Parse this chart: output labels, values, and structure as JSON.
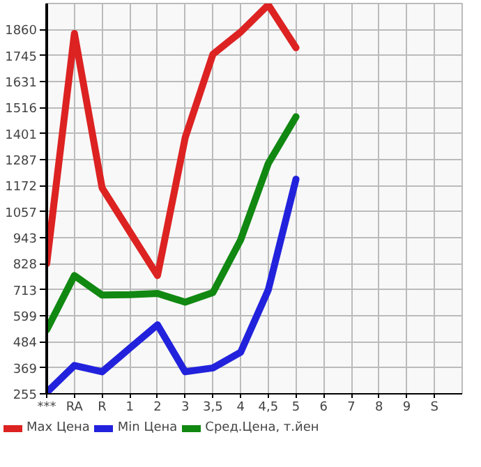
{
  "chart_data": {
    "type": "line",
    "categories": [
      "***",
      "RA",
      "R",
      "1",
      "2",
      "3",
      "3,5",
      "4",
      "4,5",
      "5",
      "6",
      "7",
      "8",
      "9",
      "S"
    ],
    "series": [
      {
        "name": "Max Цена",
        "color": "#dd2222",
        "values": [
          828,
          1843,
          1162,
          969,
          776,
          1384,
          1751,
          1849,
          1969,
          1780,
          null,
          null,
          null,
          null,
          null
        ]
      },
      {
        "name": "Min Цена",
        "color": "#2222dd",
        "values": [
          261,
          380,
          352,
          456,
          559,
          352,
          369,
          438,
          713,
          1201,
          null,
          null,
          null,
          null,
          null
        ]
      },
      {
        "name": "Сред.Цена, т.йен",
        "color": "#118811",
        "values": [
          537,
          776,
          690,
          692,
          697,
          659,
          701,
          933,
          1270,
          1476,
          null,
          null,
          null,
          null,
          null
        ]
      }
    ],
    "ylim": [
      255,
      1975
    ],
    "yticks": [
      255,
      369,
      484,
      599,
      713,
      828,
      943,
      1057,
      1172,
      1287,
      1401,
      1516,
      1631,
      1745,
      1860
    ],
    "grid": true,
    "legend": "bottom",
    "marker": "none",
    "line_style": "solid"
  }
}
